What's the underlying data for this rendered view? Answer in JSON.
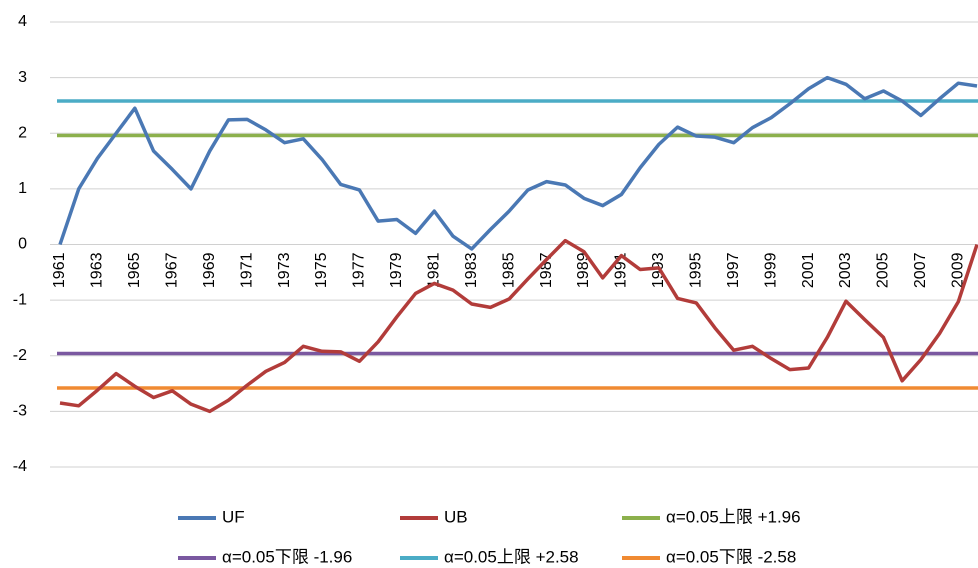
{
  "chart_data": {
    "type": "line",
    "categories": [
      "1961",
      null,
      "1963",
      null,
      "1965",
      null,
      "1967",
      null,
      "1969",
      null,
      "1971",
      null,
      "1973",
      null,
      "1975",
      null,
      "1977",
      null,
      "1979",
      null,
      "1981",
      null,
      "1983",
      null,
      "1985",
      null,
      "1987",
      null,
      "1989",
      null,
      "1991",
      null,
      "1993",
      null,
      "1995",
      null,
      "1997",
      null,
      "1999",
      null,
      "2001",
      null,
      "2003",
      null,
      "2005",
      null,
      "2007",
      null,
      "2009",
      null
    ],
    "series": [
      {
        "name": "UF",
        "color": "#4a78b4",
        "values": [
          0,
          1.0,
          1.55,
          2.0,
          2.45,
          1.68,
          1.35,
          1.0,
          1.68,
          2.24,
          2.25,
          2.06,
          1.83,
          1.9,
          1.53,
          1.08,
          0.98,
          0.42,
          0.45,
          0.2,
          0.6,
          0.15,
          -0.08,
          0.27,
          0.6,
          0.98,
          1.13,
          1.07,
          0.83,
          0.7,
          0.9,
          1.38,
          1.8,
          2.11,
          1.95,
          1.93,
          1.83,
          2.1,
          2.28,
          2.53,
          2.8,
          3.0,
          2.88,
          2.62,
          2.76,
          2.58,
          2.32,
          2.62,
          2.9,
          2.85
        ]
      },
      {
        "name": "UB",
        "color": "#b23c3a",
        "values": [
          -2.85,
          -2.9,
          -2.62,
          -2.32,
          -2.55,
          -2.75,
          -2.63,
          -2.87,
          -3.0,
          -2.8,
          -2.53,
          -2.28,
          -2.12,
          -1.83,
          -1.92,
          -1.93,
          -2.1,
          -1.75,
          -1.3,
          -0.88,
          -0.7,
          -0.82,
          -1.07,
          -1.13,
          -0.98,
          -0.62,
          -0.27,
          0.07,
          -0.13,
          -0.6,
          -0.2,
          -0.45,
          -0.42,
          -0.97,
          -1.05,
          -1.5,
          -1.9,
          -1.83,
          -2.05,
          -2.25,
          -2.22,
          -1.67,
          -1.02,
          -1.35,
          -1.67,
          -2.45,
          -2.07,
          -1.6,
          -1.03,
          0.0
        ]
      }
    ],
    "reference_lines": [
      {
        "name": "α=0.05上限 +1.96",
        "color": "#8cb04c",
        "value": 1.96
      },
      {
        "name": "α=0.05下限 -1.96",
        "color": "#7a58a0",
        "value": -1.96
      },
      {
        "name": "α=0.05上限 +2.58",
        "color": "#4bacc6",
        "value": 2.58
      },
      {
        "name": "α=0.05下限 -2.58",
        "color": "#f08a32",
        "value": -2.58
      }
    ],
    "ylim": [
      -4,
      4
    ],
    "yticks": [
      -4,
      -3,
      -2,
      -1,
      0,
      1,
      2,
      3,
      4
    ],
    "grid": true
  }
}
